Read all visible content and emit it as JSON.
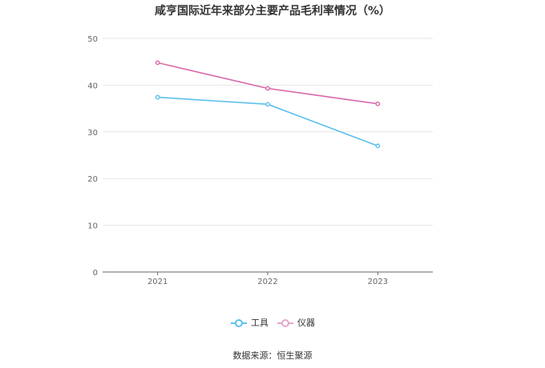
{
  "chart_data": {
    "type": "line",
    "title": "咸亨国际近年来部分主要产品毛利率情况（%）",
    "categories": [
      "2021",
      "2022",
      "2023"
    ],
    "series": [
      {
        "name": "工具",
        "values": [
          37.4,
          35.9,
          27.0
        ],
        "color": "#5bc0eb"
      },
      {
        "name": "仪器",
        "values": [
          44.8,
          39.3,
          36.0
        ],
        "color": "#d966a8"
      }
    ],
    "yticks": [
      0,
      10,
      20,
      30,
      40,
      50
    ],
    "ylim": [
      0,
      50
    ],
    "grid": true,
    "legend_position": "bottom"
  },
  "source_label": "数据来源：恒生聚源"
}
